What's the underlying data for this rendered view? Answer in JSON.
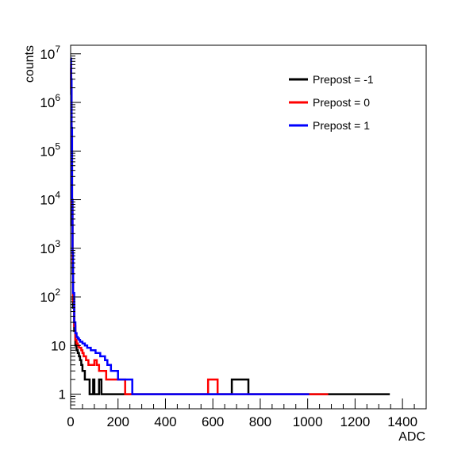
{
  "chart_data": {
    "type": "line",
    "xlabel": "ADC",
    "ylabel": "counts",
    "xlim": [
      0,
      1500
    ],
    "ylim": [
      0.5,
      15000000
    ],
    "yscale": "log",
    "x_ticks": [
      0,
      200,
      400,
      600,
      800,
      1000,
      1200,
      1400
    ],
    "x_tick_labels": [
      "0",
      "200",
      "400",
      "600",
      "800",
      "1000",
      "1200",
      "1400"
    ],
    "y_ticks": [
      1,
      10,
      100,
      1000,
      10000,
      100000,
      1000000,
      10000000
    ],
    "y_tick_labels": [
      {
        "base": "1",
        "exp": ""
      },
      {
        "base": "10",
        "exp": ""
      },
      {
        "base": "10",
        "exp": "2"
      },
      {
        "base": "10",
        "exp": "3"
      },
      {
        "base": "10",
        "exp": "4"
      },
      {
        "base": "10",
        "exp": "5"
      },
      {
        "base": "10",
        "exp": "6"
      },
      {
        "base": "10",
        "exp": "7"
      }
    ],
    "grid": false,
    "legend_position": "top-right",
    "series": [
      {
        "name": "Prepost = -1",
        "color": "#000000",
        "x": [
          0,
          2,
          4,
          6,
          8,
          10,
          15,
          20,
          25,
          30,
          35,
          40,
          45,
          50,
          55,
          60,
          65,
          70,
          75,
          80,
          85,
          90,
          95,
          100,
          110,
          120,
          130,
          140,
          150,
          170,
          190,
          220,
          260,
          300,
          340,
          380,
          420,
          460,
          500,
          580,
          600,
          640,
          680,
          750,
          780,
          870,
          900,
          930,
          960,
          1000,
          1020,
          1040,
          1220,
          1340
        ],
        "y": [
          5000000,
          1500000,
          100000,
          3000,
          300,
          60,
          20,
          10,
          8,
          7,
          6,
          5,
          4,
          3,
          3,
          2,
          2,
          2,
          2,
          1,
          1,
          1,
          2,
          1,
          1,
          2,
          1,
          1,
          1,
          1,
          1,
          1,
          1,
          1,
          1,
          1,
          1,
          1,
          1,
          1,
          1,
          1,
          2,
          1,
          1,
          1,
          1,
          1,
          1,
          1,
          1,
          1,
          1,
          1
        ]
      },
      {
        "name": "Prepost = 0",
        "color": "#ff0000",
        "x": [
          0,
          2,
          4,
          6,
          8,
          10,
          15,
          20,
          25,
          30,
          35,
          40,
          45,
          50,
          55,
          60,
          65,
          70,
          75,
          80,
          90,
          100,
          110,
          120,
          130,
          140,
          150,
          160,
          180,
          200,
          230,
          260,
          300,
          340,
          380,
          420,
          460,
          480,
          500,
          560,
          580,
          620,
          680,
          720,
          740,
          800,
          890,
          950,
          1080
        ],
        "y": [
          6000000,
          2000000,
          200000,
          8000,
          500,
          80,
          25,
          13,
          11,
          10,
          9,
          9,
          8,
          7,
          6,
          6,
          5,
          5,
          4,
          4,
          4,
          5,
          4,
          3,
          3,
          3,
          2,
          2,
          2,
          2,
          1,
          1,
          1,
          1,
          1,
          1,
          1,
          1,
          1,
          1,
          2,
          1,
          1,
          1,
          1,
          1,
          1,
          1,
          1
        ]
      },
      {
        "name": "Prepost = 1",
        "color": "#0000ff",
        "x": [
          0,
          2,
          4,
          6,
          8,
          10,
          15,
          20,
          25,
          30,
          35,
          40,
          45,
          50,
          55,
          60,
          65,
          70,
          75,
          80,
          85,
          90,
          95,
          100,
          105,
          110,
          115,
          120,
          125,
          130,
          135,
          140,
          145,
          150,
          155,
          160,
          170,
          180,
          190,
          200,
          210,
          220,
          230,
          240,
          260,
          280,
          300,
          330,
          360,
          400,
          440,
          480,
          520,
          560,
          600,
          640,
          700,
          800,
          1000
        ],
        "y": [
          8000000,
          3000000,
          300000,
          10000,
          800,
          120,
          30,
          18,
          15,
          14,
          13,
          12,
          12,
          11,
          11,
          10,
          10,
          9,
          9,
          9,
          8,
          8,
          8,
          8,
          7,
          7,
          7,
          7,
          6,
          6,
          6,
          6,
          5,
          5,
          4,
          4,
          3,
          3,
          3,
          2,
          2,
          2,
          2,
          2,
          1,
          1,
          1,
          1,
          1,
          1,
          1,
          1,
          1,
          1,
          1,
          1,
          1,
          1,
          1
        ]
      }
    ]
  }
}
